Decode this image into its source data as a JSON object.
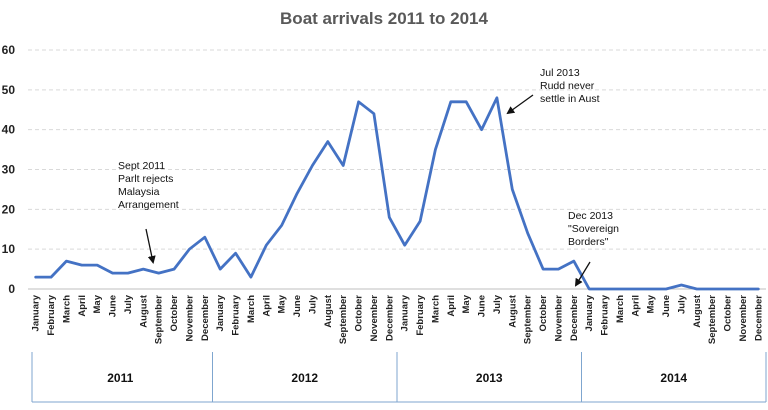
{
  "chart_data": {
    "type": "line",
    "title": "Boat arrivals 2011 to 2014",
    "xlabel": "",
    "ylabel": "",
    "ylim": [
      0,
      60
    ],
    "yticks": [
      0,
      10,
      20,
      30,
      40,
      50,
      60
    ],
    "grid": true,
    "legend": "none",
    "line_color": "#4472C4",
    "years": [
      "2011",
      "2012",
      "2013",
      "2014"
    ],
    "months": [
      "January",
      "February",
      "March",
      "April",
      "May",
      "June",
      "July",
      "August",
      "September",
      "October",
      "November",
      "December"
    ],
    "series": [
      {
        "values": [
          3,
          3,
          7,
          6,
          6,
          4,
          4,
          5,
          4,
          5,
          10,
          13,
          5,
          9,
          3,
          11,
          16,
          24,
          31,
          37,
          31,
          47,
          44,
          18,
          11,
          17,
          35,
          47,
          47,
          40,
          48,
          25,
          14,
          5,
          5,
          7,
          0,
          0,
          0,
          0,
          0,
          0,
          1,
          0,
          0,
          0,
          0,
          0
        ]
      }
    ],
    "annotations": [
      {
        "lines": [
          "Sept 2011",
          "Parlt rejects",
          "Malaysia",
          "Arrangement"
        ],
        "index": 8,
        "value": 6
      },
      {
        "lines": [
          "Jul 2013",
          "Rudd never",
          "settle in Aust"
        ],
        "index": 31,
        "value": 44
      },
      {
        "lines": [
          "Dec 2013",
          "\"Sovereign",
          "Borders\""
        ],
        "index": 35,
        "value": 0
      }
    ]
  }
}
